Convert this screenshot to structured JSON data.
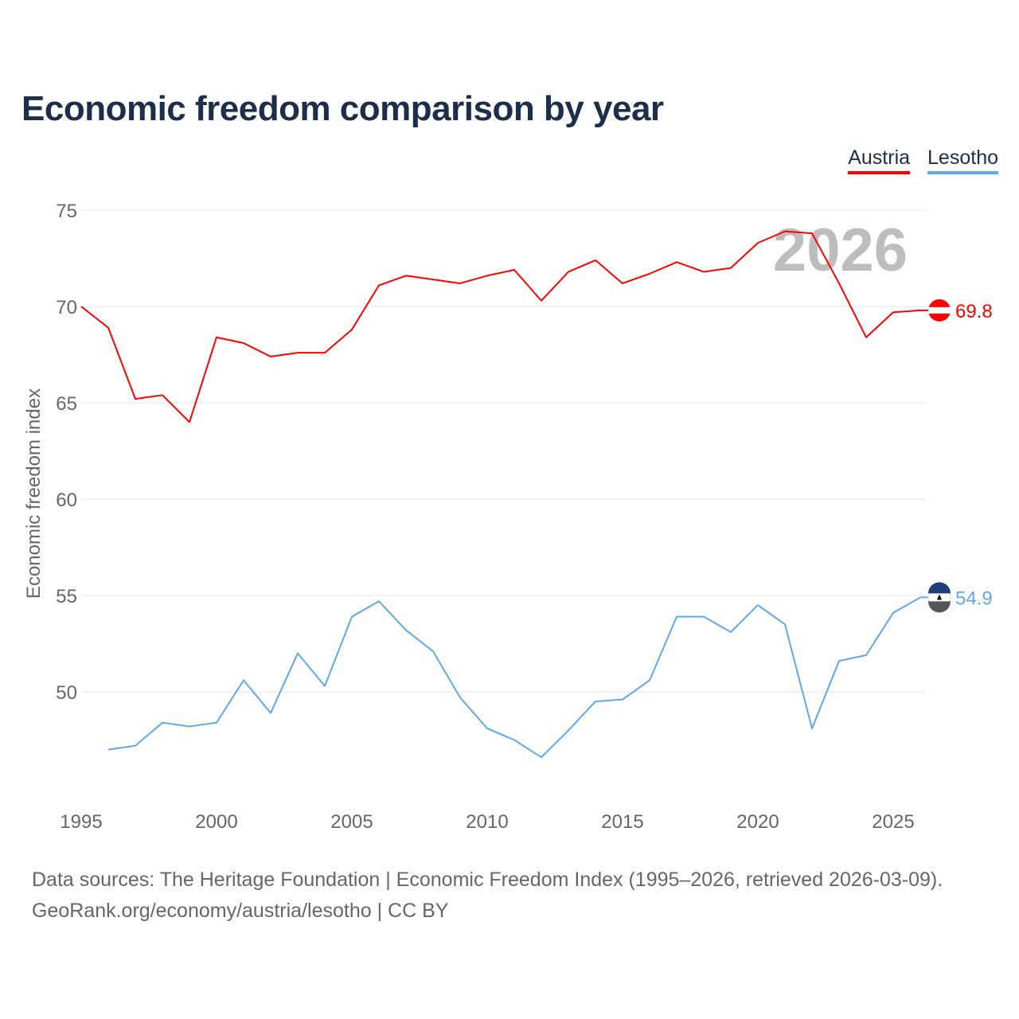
{
  "chart_data": {
    "type": "line",
    "title": "Economic freedom comparison by year",
    "ylabel": "Economic freedom index",
    "xlabel": "",
    "xlim": [
      1995,
      2026
    ],
    "ylim": [
      44,
      75
    ],
    "yticks": [
      50,
      55,
      60,
      65,
      70,
      75
    ],
    "xticks": [
      1995,
      2000,
      2005,
      2010,
      2015,
      2020,
      2025
    ],
    "grid": true,
    "legend_position": "top-right",
    "year_watermark": "2026",
    "series": [
      {
        "name": "Austria",
        "color": "#ff0000",
        "end_label": "69.8",
        "x": [
          1995,
          1996,
          1997,
          1998,
          1999,
          2000,
          2001,
          2002,
          2003,
          2004,
          2005,
          2006,
          2007,
          2008,
          2009,
          2010,
          2011,
          2012,
          2013,
          2014,
          2015,
          2016,
          2017,
          2018,
          2019,
          2020,
          2021,
          2022,
          2023,
          2024,
          2025,
          2026
        ],
        "values": [
          70.0,
          68.9,
          65.2,
          65.4,
          64.0,
          68.4,
          68.1,
          67.4,
          67.6,
          67.6,
          68.8,
          71.1,
          71.6,
          71.4,
          71.2,
          71.6,
          71.9,
          70.3,
          71.8,
          72.4,
          71.2,
          71.7,
          72.3,
          71.8,
          72.0,
          73.3,
          73.9,
          73.8,
          71.2,
          68.4,
          69.7,
          69.8
        ]
      },
      {
        "name": "Lesotho",
        "color": "#5ea8ec",
        "end_label": "54.9",
        "x": [
          1996,
          1997,
          1998,
          1999,
          2000,
          2001,
          2002,
          2003,
          2004,
          2005,
          2006,
          2007,
          2008,
          2009,
          2010,
          2011,
          2012,
          2013,
          2014,
          2015,
          2016,
          2017,
          2018,
          2019,
          2020,
          2021,
          2022,
          2023,
          2024,
          2025,
          2026
        ],
        "values": [
          47.0,
          47.2,
          48.4,
          48.2,
          48.4,
          50.6,
          48.9,
          52.0,
          50.3,
          53.9,
          54.7,
          53.2,
          52.1,
          49.7,
          48.1,
          47.5,
          46.6,
          48.0,
          49.5,
          49.6,
          50.6,
          53.9,
          53.9,
          53.1,
          54.5,
          53.5,
          48.1,
          51.6,
          51.9,
          54.1,
          54.9
        ]
      }
    ]
  },
  "source": {
    "line1": "Data sources: The Heritage Foundation | Economic Freedom Index (1995–2026, retrieved 2026-03-09).",
    "line2": "GeoRank.org/economy/austria/lesotho | CC BY"
  }
}
